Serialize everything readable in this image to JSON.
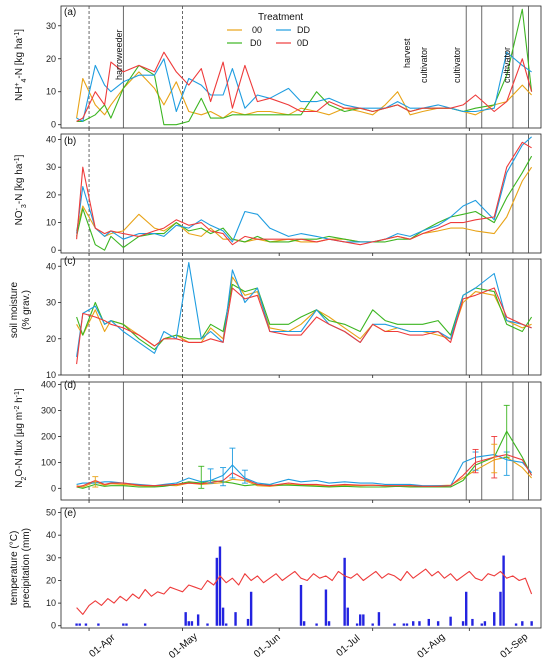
{
  "legend": {
    "title": "Treatment",
    "items": [
      {
        "label": "00",
        "color": "#E8A317"
      },
      {
        "label": "D0",
        "color": "#3CB521"
      },
      {
        "label": "DD",
        "color": "#1F9DE0"
      },
      {
        "label": "0D",
        "color": "#EE3B3B"
      }
    ]
  },
  "x_tick_labels": [
    "01-Apr",
    "01-May",
    "01-Jun",
    "01-Jul",
    "01-Aug",
    "01-Sep"
  ],
  "events": [
    {
      "label": "harroweeder"
    },
    {
      "label": "harvest"
    },
    {
      "label": "cultivator"
    },
    {
      "label": "cultivator"
    },
    {
      "label": "cultivator"
    }
  ],
  "chart_data": [
    {
      "panel": "(a)",
      "type": "line",
      "ylabel": "NH4+-N [kg ha-1]",
      "ylim": [
        -1,
        36
      ],
      "yticks": [
        0,
        10,
        20,
        30
      ],
      "x": [
        -4,
        -2,
        2,
        5,
        7,
        11,
        16,
        21,
        24,
        28,
        32,
        36,
        39,
        43,
        46,
        50,
        54,
        58,
        64,
        68,
        73,
        77,
        82,
        87,
        91,
        95,
        99,
        103,
        107,
        112,
        116,
        120,
        124,
        130,
        134,
        139,
        142
      ],
      "series": [
        {
          "name": "00",
          "values": [
            2,
            14,
            6,
            3,
            6,
            11,
            16,
            11,
            6,
            13,
            4,
            3,
            4,
            2,
            4,
            3,
            4,
            4,
            3,
            5,
            4,
            3,
            5,
            4,
            3,
            6,
            10,
            3,
            4,
            5,
            5,
            4,
            3,
            6,
            7,
            12,
            9
          ]
        },
        {
          "name": "D0",
          "values": [
            1,
            1,
            3,
            6,
            2,
            11,
            18,
            15,
            0,
            0,
            1,
            8,
            2,
            2,
            3,
            3,
            3,
            3,
            3,
            3,
            10,
            6,
            4,
            5,
            4,
            5,
            6,
            4,
            5,
            5,
            5,
            4,
            5,
            6,
            15,
            35,
            10
          ]
        },
        {
          "name": "DD",
          "values": [
            2,
            1,
            18,
            12,
            10,
            13,
            15,
            15,
            20,
            4,
            14,
            12,
            9,
            9,
            17,
            5,
            9,
            8,
            11,
            7,
            7,
            8,
            6,
            5,
            5,
            5,
            7,
            5,
            5,
            6,
            5,
            4,
            4,
            5,
            22,
            18,
            16
          ]
        },
        {
          "name": "0D",
          "values": [
            1,
            2,
            10,
            6,
            19,
            16,
            18,
            16,
            22,
            16,
            12,
            17,
            7,
            19,
            5,
            18,
            7,
            8,
            6,
            4,
            4,
            7,
            5,
            5,
            4,
            5,
            6,
            4,
            5,
            5,
            5,
            6,
            9,
            4,
            7,
            20,
            10
          ]
        }
      ]
    },
    {
      "panel": "(b)",
      "type": "line",
      "ylabel": "NO3--N [kg ha-1]",
      "ylim": [
        -1,
        42
      ],
      "yticks": [
        0,
        10,
        20,
        30,
        40
      ],
      "x": [
        -4,
        -2,
        2,
        5,
        7,
        11,
        16,
        21,
        24,
        28,
        32,
        36,
        39,
        43,
        46,
        50,
        54,
        58,
        64,
        68,
        73,
        77,
        82,
        87,
        91,
        95,
        99,
        103,
        107,
        112,
        116,
        120,
        124,
        130,
        134,
        139,
        142
      ],
      "series": [
        {
          "name": "00",
          "values": [
            7,
            16,
            8,
            5,
            6,
            7,
            13,
            8,
            7,
            10,
            6,
            5,
            8,
            4,
            4,
            3,
            4,
            3,
            4,
            3,
            3,
            4,
            4,
            3,
            3,
            4,
            5,
            4,
            6,
            7,
            8,
            8,
            7,
            6,
            12,
            25,
            30
          ]
        },
        {
          "name": "D0",
          "values": [
            5,
            15,
            2,
            0,
            5,
            1,
            5,
            6,
            6,
            10,
            7,
            8,
            6,
            8,
            4,
            3,
            5,
            3,
            3,
            4,
            4,
            5,
            4,
            3,
            3,
            3,
            4,
            4,
            7,
            10,
            12,
            13,
            14,
            10,
            19,
            28,
            34
          ]
        },
        {
          "name": "DD",
          "values": [
            6,
            23,
            8,
            5,
            7,
            4,
            6,
            6,
            5,
            9,
            8,
            11,
            9,
            7,
            3,
            14,
            13,
            8,
            5,
            6,
            5,
            4,
            3,
            3,
            3,
            4,
            6,
            5,
            7,
            9,
            12,
            16,
            18,
            11,
            28,
            38,
            41
          ]
        },
        {
          "name": "0D",
          "values": [
            4,
            30,
            8,
            6,
            7,
            6,
            5,
            7,
            8,
            11,
            9,
            10,
            7,
            6,
            2,
            5,
            4,
            4,
            4,
            4,
            3,
            4,
            3,
            2,
            3,
            4,
            5,
            4,
            6,
            8,
            10,
            10,
            11,
            12,
            30,
            39,
            37
          ]
        }
      ]
    },
    {
      "panel": "(c)",
      "type": "line",
      "ylabel": "soil moisture (% grav.)",
      "ylim": [
        10,
        42
      ],
      "yticks": [
        10,
        20,
        30,
        40
      ],
      "x": [
        -4,
        -2,
        2,
        5,
        7,
        11,
        16,
        21,
        24,
        28,
        32,
        36,
        39,
        43,
        46,
        50,
        54,
        58,
        64,
        68,
        73,
        77,
        82,
        87,
        91,
        95,
        99,
        103,
        107,
        112,
        116,
        120,
        124,
        130,
        134,
        139,
        142
      ],
      "series": [
        {
          "name": "00",
          "values": [
            24,
            21,
            28,
            22,
            25,
            24,
            21,
            18,
            20,
            21,
            19,
            19,
            23,
            20,
            37,
            32,
            33,
            23,
            22,
            24,
            28,
            26,
            23,
            20,
            24,
            22,
            23,
            22,
            22,
            21,
            20,
            30,
            33,
            32,
            25,
            23,
            24
          ]
        },
        {
          "name": "D0",
          "values": [
            26,
            21,
            30,
            24,
            25,
            24,
            20,
            17,
            20,
            21,
            20,
            20,
            24,
            22,
            35,
            33,
            34,
            24,
            24,
            26,
            28,
            25,
            24,
            22,
            28,
            25,
            24,
            24,
            24,
            25,
            21,
            32,
            34,
            33,
            24,
            22,
            26
          ]
        },
        {
          "name": "DD",
          "values": [
            15,
            27,
            29,
            24,
            25,
            22,
            19,
            16,
            22,
            20,
            41,
            20,
            22,
            19,
            39,
            30,
            34,
            22,
            22,
            22,
            28,
            24,
            22,
            19,
            24,
            24,
            23,
            22,
            22,
            22,
            20,
            32,
            34,
            38,
            25,
            24,
            23
          ]
        },
        {
          "name": "0D",
          "values": [
            13,
            27,
            26,
            25,
            24,
            23,
            21,
            18,
            20,
            20,
            19,
            19,
            20,
            19,
            34,
            31,
            32,
            22,
            21,
            21,
            26,
            24,
            22,
            19,
            24,
            22,
            22,
            21,
            21,
            22,
            19,
            31,
            32,
            34,
            26,
            24,
            23
          ]
        }
      ]
    },
    {
      "panel": "(d)",
      "type": "line",
      "ylabel": "N2O-N flux [µg m-2 h-1]",
      "ylim": [
        -45,
        410
      ],
      "yticks": [
        0,
        100,
        200,
        300,
        400
      ],
      "x": [
        -4,
        -2,
        2,
        5,
        7,
        11,
        16,
        21,
        24,
        28,
        32,
        36,
        39,
        43,
        46,
        50,
        54,
        58,
        64,
        68,
        73,
        77,
        82,
        87,
        91,
        95,
        99,
        103,
        107,
        112,
        116,
        120,
        124,
        130,
        134,
        139,
        142
      ],
      "series": [
        {
          "name": "00",
          "values": [
            10,
            5,
            25,
            12,
            18,
            15,
            10,
            8,
            12,
            10,
            20,
            15,
            18,
            22,
            35,
            30,
            10,
            8,
            15,
            12,
            10,
            8,
            12,
            10,
            12,
            10,
            8,
            10,
            8,
            10,
            12,
            40,
            70,
            110,
            120,
            80,
            40
          ]
        },
        {
          "name": "D0",
          "values": [
            5,
            0,
            15,
            8,
            10,
            10,
            5,
            5,
            8,
            15,
            25,
            20,
            30,
            25,
            20,
            10,
            15,
            12,
            12,
            10,
            8,
            5,
            8,
            5,
            5,
            5,
            8,
            5,
            5,
            5,
            5,
            30,
            90,
            120,
            220,
            120,
            50
          ]
        },
        {
          "name": "DD",
          "values": [
            15,
            20,
            20,
            25,
            25,
            20,
            15,
            10,
            15,
            20,
            40,
            25,
            30,
            50,
            90,
            40,
            20,
            15,
            35,
            25,
            30,
            20,
            25,
            20,
            20,
            15,
            15,
            15,
            10,
            10,
            10,
            100,
            120,
            130,
            110,
            100,
            60
          ]
        },
        {
          "name": "0D",
          "values": [
            5,
            10,
            30,
            15,
            20,
            20,
            12,
            10,
            12,
            15,
            20,
            18,
            22,
            30,
            60,
            35,
            15,
            10,
            20,
            15,
            15,
            10,
            15,
            12,
            12,
            10,
            10,
            10,
            8,
            8,
            10,
            50,
            100,
            120,
            130,
            110,
            50
          ]
        }
      ],
      "error_bars": [
        {
          "series": "DD",
          "x": [
            39,
            43,
            46,
            50,
            124,
            134
          ],
          "low": [
            20,
            10,
            40,
            20,
            70,
            50
          ],
          "high": [
            75,
            80,
            155,
            70,
            140,
            140
          ]
        },
        {
          "series": "0D",
          "x": [
            124,
            130
          ],
          "low": [
            60,
            40
          ],
          "high": [
            150,
            200
          ]
        },
        {
          "series": "D0",
          "x": [
            36,
            134
          ],
          "low": [
            0,
            120
          ],
          "high": [
            85,
            320
          ]
        },
        {
          "series": "00",
          "x": [
            2,
            130
          ],
          "low": [
            5,
            60
          ],
          "high": [
            45,
            170
          ]
        }
      ]
    },
    {
      "panel": "(e)",
      "type": "bar+line",
      "ylabel": "temperature (°C) precipitation (mm)",
      "ylim": [
        -1,
        52
      ],
      "yticks": [
        0,
        10,
        20,
        30,
        40,
        50
      ],
      "temperature": {
        "color": "#EE3B3B",
        "x": [
          -4,
          -2,
          0,
          2,
          4,
          6,
          8,
          10,
          12,
          14,
          16,
          18,
          20,
          22,
          24,
          26,
          28,
          30,
          32,
          34,
          36,
          38,
          40,
          42,
          44,
          46,
          48,
          50,
          52,
          54,
          56,
          58,
          60,
          62,
          64,
          66,
          68,
          70,
          72,
          74,
          76,
          78,
          80,
          82,
          84,
          86,
          88,
          90,
          92,
          94,
          96,
          98,
          100,
          102,
          104,
          106,
          108,
          110,
          112,
          114,
          116,
          118,
          120,
          122,
          124,
          126,
          128,
          130,
          132,
          134,
          136,
          138,
          140,
          142
        ],
        "values": [
          8,
          5,
          9,
          11,
          9,
          12,
          10,
          13,
          11,
          14,
          12,
          16,
          13,
          15,
          14,
          17,
          16,
          15,
          18,
          17,
          16,
          20,
          18,
          22,
          19,
          21,
          18,
          23,
          20,
          22,
          19,
          21,
          23,
          20,
          22,
          24,
          21,
          20,
          23,
          21,
          22,
          20,
          24,
          22,
          21,
          23,
          20,
          22,
          24,
          21,
          23,
          22,
          20,
          24,
          21,
          23,
          25,
          22,
          24,
          21,
          23,
          20,
          22,
          24,
          21,
          20,
          23,
          22,
          24,
          21,
          22,
          20,
          21,
          14
        ]
      },
      "precipitation": {
        "color": "#2323E0",
        "x": [
          -4,
          -3,
          -1,
          3,
          11,
          12,
          18,
          31,
          32,
          33,
          35,
          38,
          41,
          42,
          43,
          44,
          47,
          51,
          52,
          68,
          69,
          73,
          76,
          77,
          82,
          83,
          86,
          87,
          88,
          91,
          93,
          98,
          101,
          102,
          104,
          106,
          109,
          112,
          116,
          120,
          121,
          123,
          126,
          127,
          130,
          132,
          133,
          137,
          139,
          142
        ],
        "values": [
          1,
          1,
          1,
          1,
          1,
          1,
          1,
          6,
          2,
          2,
          5,
          1,
          30,
          35,
          8,
          1,
          6,
          3,
          15,
          18,
          2,
          1,
          16,
          2,
          30,
          8,
          1,
          5,
          5,
          1,
          6,
          1,
          1,
          1,
          2,
          2,
          3,
          2,
          4,
          2,
          15,
          3,
          1,
          2,
          6,
          15,
          31,
          1,
          2,
          2
        ]
      }
    }
  ]
}
